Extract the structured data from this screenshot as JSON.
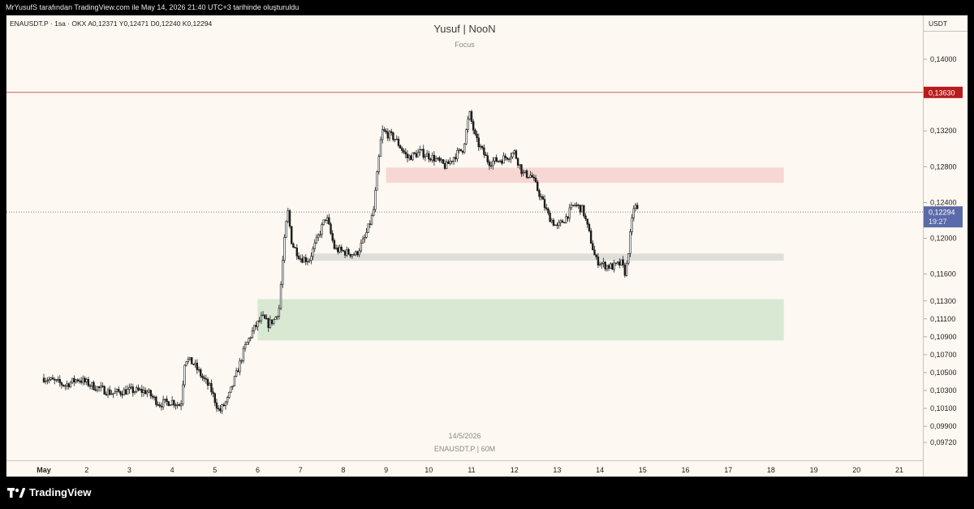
{
  "header_text": "MrYusufS tarafından TradingView.com ile May 14, 2026 21:40 UTC+3 tarihinde oluşturuldu",
  "legend": "ENAUSDT.P · 1sa · OKX   A0,12371  Y0,12471  D0,12240  K0,12294",
  "watermark": {
    "title": "Yusuf | NooN",
    "subtitle": "Focus",
    "date": "14/5/2026",
    "symbol_line": "ENAUSDT.P | 60M"
  },
  "currency": "USDT",
  "footer_brand": "TradingView",
  "colors": {
    "up": "#ffffff",
    "down": "#1c1c1c",
    "wick": "#1c1c1c",
    "resistance": "#b71c1c",
    "zone_red": "#f5d3cf",
    "zone_gray": "#dcdad6",
    "zone_green": "#d4e6cf",
    "last_price_bg": "#5b6aa8"
  },
  "chart_data": {
    "type": "candlestick",
    "interval": "60M",
    "y_ticks": [
      "0,14000",
      "0,13200",
      "0,12800",
      "0,12400",
      "0,12000",
      "0,11600",
      "0,11300",
      "0,11100",
      "0,10900",
      "0,10700",
      "0,10500",
      "0,10300",
      "0,10100",
      "0,09900",
      "0,09720"
    ],
    "x_ticks": [
      "May",
      "2",
      "3",
      "4",
      "5",
      "6",
      "7",
      "8",
      "9",
      "10",
      "11",
      "12",
      "13",
      "14",
      "15",
      "16",
      "17",
      "18",
      "19",
      "20",
      "21"
    ],
    "horizontal_line": {
      "price": 0.1363,
      "label": "0,13630"
    },
    "last_price": {
      "price": 0.12294,
      "label": "0,12294",
      "countdown": "19:27"
    },
    "zones": [
      {
        "kind": "supply",
        "top": 0.1279,
        "bottom": 0.1262,
        "from_day": 9,
        "to_day": 18.3
      },
      {
        "kind": "level",
        "top": 0.1183,
        "bottom": 0.1175,
        "from_day": 7.3,
        "to_day": 18.3
      },
      {
        "kind": "demand",
        "top": 0.1132,
        "bottom": 0.1086,
        "from_day": 6,
        "to_day": 18.3
      }
    ],
    "price_path": [
      [
        1.0,
        0.1044
      ],
      [
        1.5,
        0.1036
      ],
      [
        1.8,
        0.1043
      ],
      [
        2.2,
        0.1034
      ],
      [
        2.6,
        0.1027
      ],
      [
        3.0,
        0.103
      ],
      [
        3.4,
        0.1029
      ],
      [
        3.7,
        0.1015
      ],
      [
        4.0,
        0.1018
      ],
      [
        4.2,
        0.1013
      ],
      [
        4.3,
        0.1066
      ],
      [
        4.5,
        0.106
      ],
      [
        4.7,
        0.1045
      ],
      [
        4.9,
        0.1032
      ],
      [
        5.1,
        0.1006
      ],
      [
        5.3,
        0.102
      ],
      [
        5.5,
        0.1048
      ],
      [
        5.7,
        0.1078
      ],
      [
        5.9,
        0.1098
      ],
      [
        6.1,
        0.1112
      ],
      [
        6.25,
        0.1104
      ],
      [
        6.4,
        0.111
      ],
      [
        6.5,
        0.1122
      ],
      [
        6.6,
        0.1185
      ],
      [
        6.7,
        0.1232
      ],
      [
        6.8,
        0.1194
      ],
      [
        7.0,
        0.1178
      ],
      [
        7.2,
        0.1176
      ],
      [
        7.4,
        0.12
      ],
      [
        7.6,
        0.1225
      ],
      [
        7.8,
        0.1188
      ],
      [
        8.0,
        0.1185
      ],
      [
        8.3,
        0.1182
      ],
      [
        8.5,
        0.12
      ],
      [
        8.7,
        0.1228
      ],
      [
        8.9,
        0.132
      ],
      [
        9.2,
        0.1312
      ],
      [
        9.5,
        0.129
      ],
      [
        9.8,
        0.1296
      ],
      [
        10.1,
        0.129
      ],
      [
        10.4,
        0.128
      ],
      [
        10.6,
        0.1292
      ],
      [
        10.8,
        0.13
      ],
      [
        10.95,
        0.134
      ],
      [
        11.1,
        0.131
      ],
      [
        11.4,
        0.1285
      ],
      [
        11.7,
        0.1288
      ],
      [
        12.0,
        0.1296
      ],
      [
        12.2,
        0.1272
      ],
      [
        12.4,
        0.127
      ],
      [
        12.6,
        0.1248
      ],
      [
        12.8,
        0.1225
      ],
      [
        13.0,
        0.1212
      ],
      [
        13.2,
        0.1223
      ],
      [
        13.4,
        0.1238
      ],
      [
        13.6,
        0.1232
      ],
      [
        13.75,
        0.1205
      ],
      [
        13.9,
        0.1176
      ],
      [
        14.1,
        0.117
      ],
      [
        14.3,
        0.1168
      ],
      [
        14.5,
        0.1172
      ],
      [
        14.6,
        0.116
      ],
      [
        14.7,
        0.12
      ],
      [
        14.8,
        0.1238
      ],
      [
        14.9,
        0.1229
      ]
    ]
  }
}
